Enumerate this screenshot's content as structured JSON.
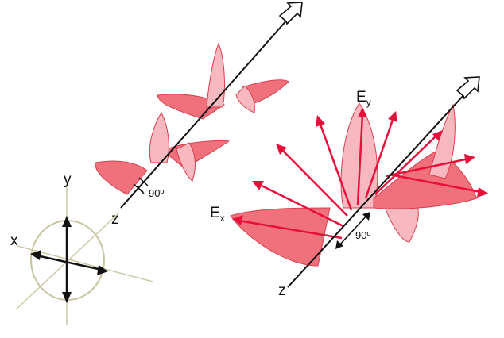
{
  "labels": {
    "left_z": "z",
    "left_angle": "90º",
    "axes_x": "x",
    "axes_y": "y",
    "right_ex_main": "E",
    "right_ex_sub": "x",
    "right_ey_main": "E",
    "right_ey_sub": "y",
    "right_angle": "90º",
    "right_z": "z"
  },
  "colors": {
    "wave_dark": "#f0707c",
    "wave_light": "#f8b8bf",
    "wave_edge": "#d8404e",
    "arrow": "#e8103a",
    "axis_line": "#111111",
    "ellipse": "#c8c4a0",
    "guide_line": "#cdc9a8"
  },
  "icons": {
    "propagation_arrow": "hollow-arrow-icon"
  }
}
